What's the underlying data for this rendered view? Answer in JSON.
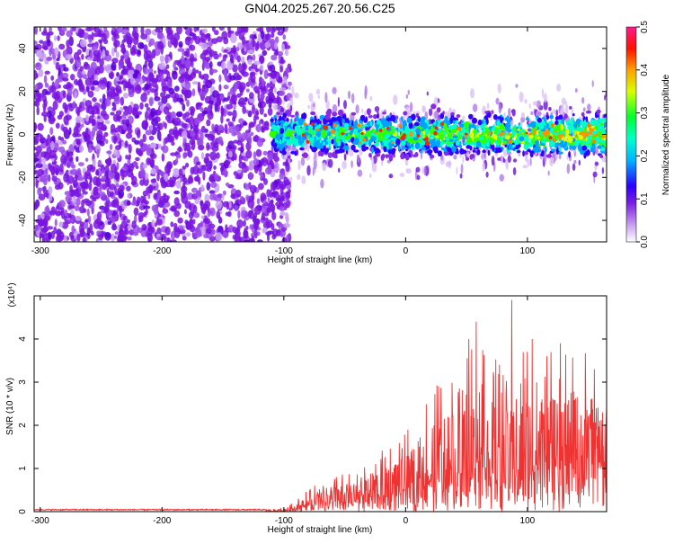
{
  "figure_title": "GN04.2025.267.20.56.C25",
  "chart_data": [
    {
      "type": "heatmap",
      "xlabel": "Height of straight line (km)",
      "ylabel": "Frequency (Hz)",
      "xlim": [
        -305,
        165
      ],
      "ylim": [
        -50,
        50
      ],
      "x_ticks": [
        -300,
        -200,
        -100,
        0,
        100
      ],
      "y_ticks": [
        -40,
        -20,
        0,
        20,
        40
      ],
      "colorbar": {
        "label": "Normalized spectral amplitude",
        "range": [
          0,
          0.5
        ],
        "ticks": [
          "0.0",
          "0.1",
          "0.2",
          "0.3",
          "0.4",
          "0.5"
        ],
        "colors": [
          "#ffffff",
          "#8a2be2",
          "#0000ff",
          "#00ffff",
          "#00ff00",
          "#ffff00",
          "#ff0000",
          "#ff0080"
        ]
      },
      "regions": [
        {
          "x_range": [
            -305,
            -95
          ],
          "y_range": [
            -50,
            50
          ],
          "amplitude": "low (~0.03)",
          "pattern": "broadband noise"
        },
        {
          "x_range": [
            -110,
            165
          ],
          "y_range": [
            -10,
            10
          ],
          "amplitude": "0.15-0.45",
          "pattern": "signal band centered near 0 Hz"
        },
        {
          "x_range": [
            -110,
            165
          ],
          "y_range": [
            -25,
            25
          ],
          "amplitude": "0.02-0.06",
          "pattern": "sparse halo"
        }
      ]
    },
    {
      "type": "line",
      "xlabel": "Height of straight line (km)",
      "ylabel": "SNR (10 * v/v)",
      "scale_label": "(x10⁴)",
      "color": "#ee3333",
      "xlim": [
        -305,
        165
      ],
      "ylim": [
        0,
        5
      ],
      "x_ticks": [
        -300,
        -200,
        -100,
        0,
        100
      ],
      "y_ticks": [
        0,
        1,
        2,
        3,
        4
      ],
      "envelope": {
        "x": [
          -305,
          -120,
          -100,
          -80,
          -60,
          -40,
          -20,
          0,
          20,
          40,
          60,
          80,
          100,
          120,
          140,
          165
        ],
        "max": [
          0.05,
          0.05,
          0.08,
          0.5,
          0.9,
          0.9,
          1.5,
          1.8,
          2.9,
          3.3,
          4.4,
          3.2,
          3.9,
          3.7,
          3.9,
          3.3
        ]
      },
      "peaks": [
        {
          "x": 87,
          "y": 4.9
        },
        {
          "x": 58,
          "y": 4.4
        },
        {
          "x": 52,
          "y": 4.0
        },
        {
          "x": 104,
          "y": 4.0
        },
        {
          "x": 127,
          "y": 3.9
        },
        {
          "x": 116,
          "y": 3.6
        },
        {
          "x": 77,
          "y": 3.4
        },
        {
          "x": 155,
          "y": 3.3
        },
        {
          "x": 27,
          "y": 2.9
        }
      ]
    }
  ]
}
